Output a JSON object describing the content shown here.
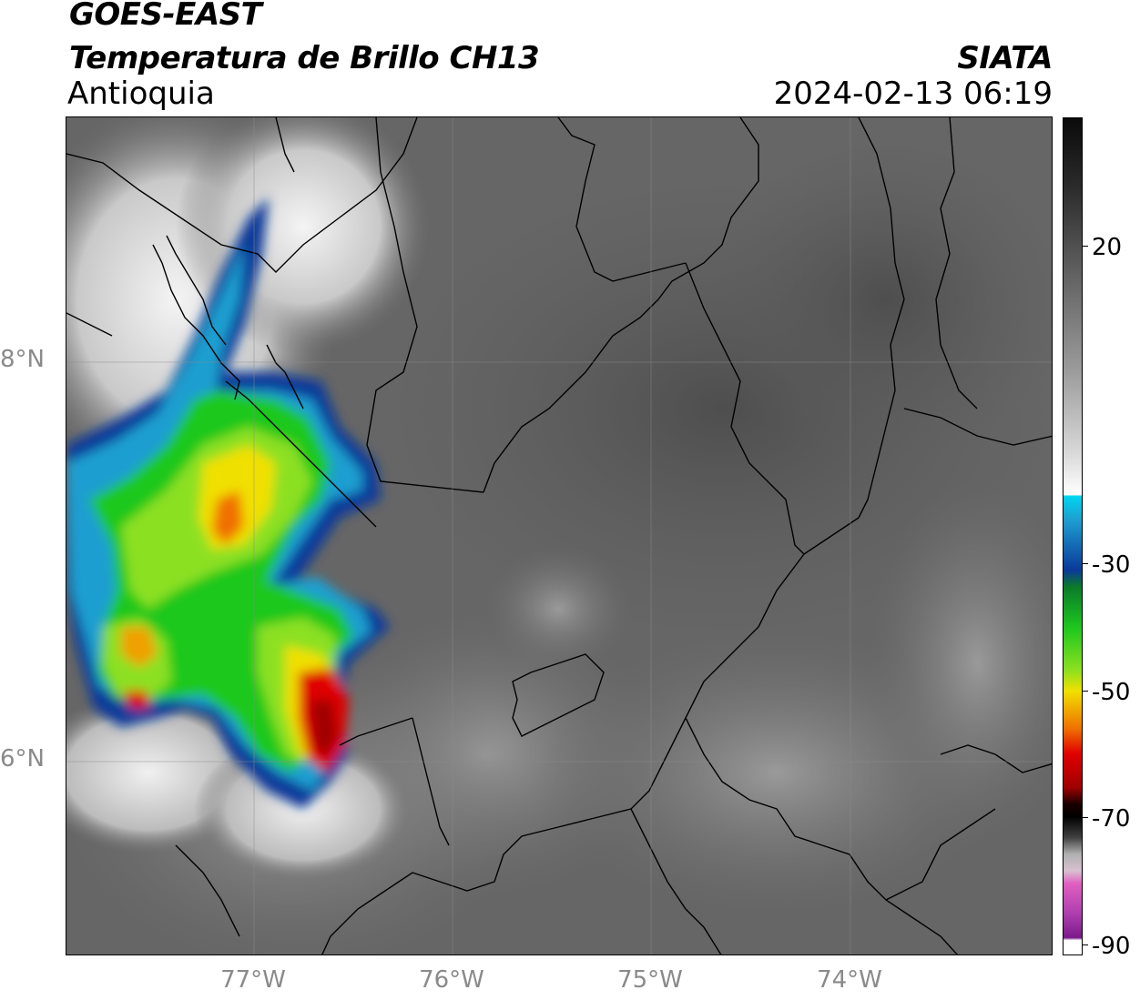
{
  "header": {
    "satellite": "GOES-EAST",
    "product": "Temperatura de Brillo CH13",
    "region": "Antioquia",
    "brand": "SIATA",
    "datetime": "2024-02-13 06:19"
  },
  "map": {
    "latitude_labels": [
      "8°N",
      "6°N"
    ],
    "longitude_labels": [
      "77°W",
      "76°W",
      "75°W",
      "74°W"
    ]
  },
  "colorbar": {
    "tick_labels": [
      "20",
      "-30",
      "-50",
      "-70",
      "-90"
    ],
    "colors": {
      "warm_gray": "#5e5e5e",
      "white": "#ffffff",
      "cyan": "#00d4f0",
      "blue": "#0a3a9a",
      "green": "#1ec81e",
      "yellow": "#f0e000",
      "red": "#e00000",
      "black": "#000000",
      "magenta": "#e060c0",
      "purple": "#7a1a8a"
    }
  }
}
